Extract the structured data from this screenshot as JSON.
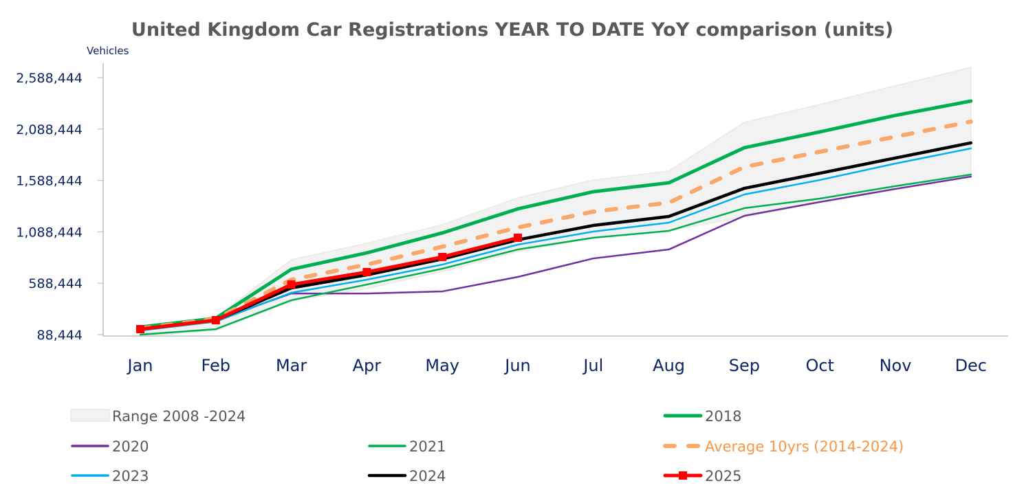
{
  "chart_data": {
    "type": "line",
    "title": "United Kingdom Car Registrations YEAR TO DATE YoY comparison (units)",
    "ylabel": "Vehicles",
    "xlabel": "",
    "ylim": [
      88444,
      2588444
    ],
    "yticks": [
      88444,
      588444,
      1088444,
      1588444,
      2088444,
      2588444
    ],
    "ytick_labels": [
      "88,444",
      "588,444",
      "1,088,444",
      "1,588,444",
      "2,088,444",
      "2,588,444"
    ],
    "categories": [
      "Jan",
      "Feb",
      "Mar",
      "Apr",
      "May",
      "Jun",
      "Jul",
      "Aug",
      "Sep",
      "Oct",
      "Nov",
      "Dec"
    ],
    "grid": false,
    "legend_position": "bottom",
    "range_band": {
      "name": "Range 2008 -2024",
      "color": "#f2f2f2",
      "edge_color": "#ece9dd",
      "upper": [
        155000,
        255000,
        817000,
        977000,
        1158000,
        1419000,
        1593000,
        1680000,
        2154000,
        2328000,
        2509000,
        2689000
      ],
      "lower": [
        75000,
        128000,
        416000,
        536000,
        703000,
        897000,
        1031000,
        1098000,
        1232000,
        1372000,
        1499000,
        1626000
      ]
    },
    "series": [
      {
        "name": "2018",
        "color": "#00b050",
        "style": "solid",
        "width": 5,
        "values": [
          162000,
          248000,
          724000,
          884000,
          1078000,
          1312000,
          1479000,
          1566000,
          1907000,
          2061000,
          2221000,
          2361000
        ]
      },
      {
        "name": "2020",
        "color": "#7030a0",
        "style": "solid",
        "width": 2.5,
        "values": [
          135000,
          229000,
          489000,
          489000,
          509000,
          650000,
          830000,
          917000,
          1245000,
          1379000,
          1506000,
          1626000
        ]
      },
      {
        "name": "2021",
        "color": "#00b050",
        "style": "solid",
        "width": 2.5,
        "values": [
          88444,
          142000,
          423000,
          576000,
          730000,
          917000,
          1031000,
          1098000,
          1319000,
          1412000,
          1533000,
          1646000
        ]
      },
      {
        "name": "Average 10yrs (2014-2024)",
        "color": "#f9a86a",
        "style": "dashed",
        "width": 6,
        "values": [
          148000,
          242000,
          623000,
          770000,
          944000,
          1131000,
          1285000,
          1372000,
          1720000,
          1867000,
          2014000,
          2161000
        ]
      },
      {
        "name": "2023",
        "color": "#00b0f0",
        "style": "solid",
        "width": 2.5,
        "values": [
          128000,
          215000,
          496000,
          623000,
          770000,
          964000,
          1091000,
          1178000,
          1452000,
          1593000,
          1753000,
          1900000
        ]
      },
      {
        "name": "2024",
        "color": "#000000",
        "style": "solid",
        "width": 4.5,
        "values": [
          142000,
          229000,
          543000,
          670000,
          824000,
          1011000,
          1151000,
          1238000,
          1512000,
          1659000,
          1807000,
          1954000
        ]
      },
      {
        "name": "2025",
        "color": "#ff0000",
        "style": "solid",
        "width": 5,
        "marker": "square",
        "values": [
          142000,
          229000,
          576000,
          697000,
          844000,
          1031000,
          null,
          null,
          null,
          null,
          null,
          null
        ]
      }
    ]
  },
  "legend": {
    "items": [
      {
        "key": "range",
        "label": "Range 2008 -2024",
        "text_color": "#595959"
      },
      {
        "key": "2018",
        "label": "2018",
        "text_color": "#595959"
      },
      {
        "key": "2020",
        "label": "2020",
        "text_color": "#595959"
      },
      {
        "key": "2021",
        "label": "2021",
        "text_color": "#595959"
      },
      {
        "key": "avg",
        "label": "Average 10yrs (2014-2024)",
        "text_color": "#f79646"
      },
      {
        "key": "2023",
        "label": "2023",
        "text_color": "#595959"
      },
      {
        "key": "2024",
        "label": "2024",
        "text_color": "#595959"
      },
      {
        "key": "2025",
        "label": "2025",
        "text_color": "#595959"
      }
    ]
  }
}
